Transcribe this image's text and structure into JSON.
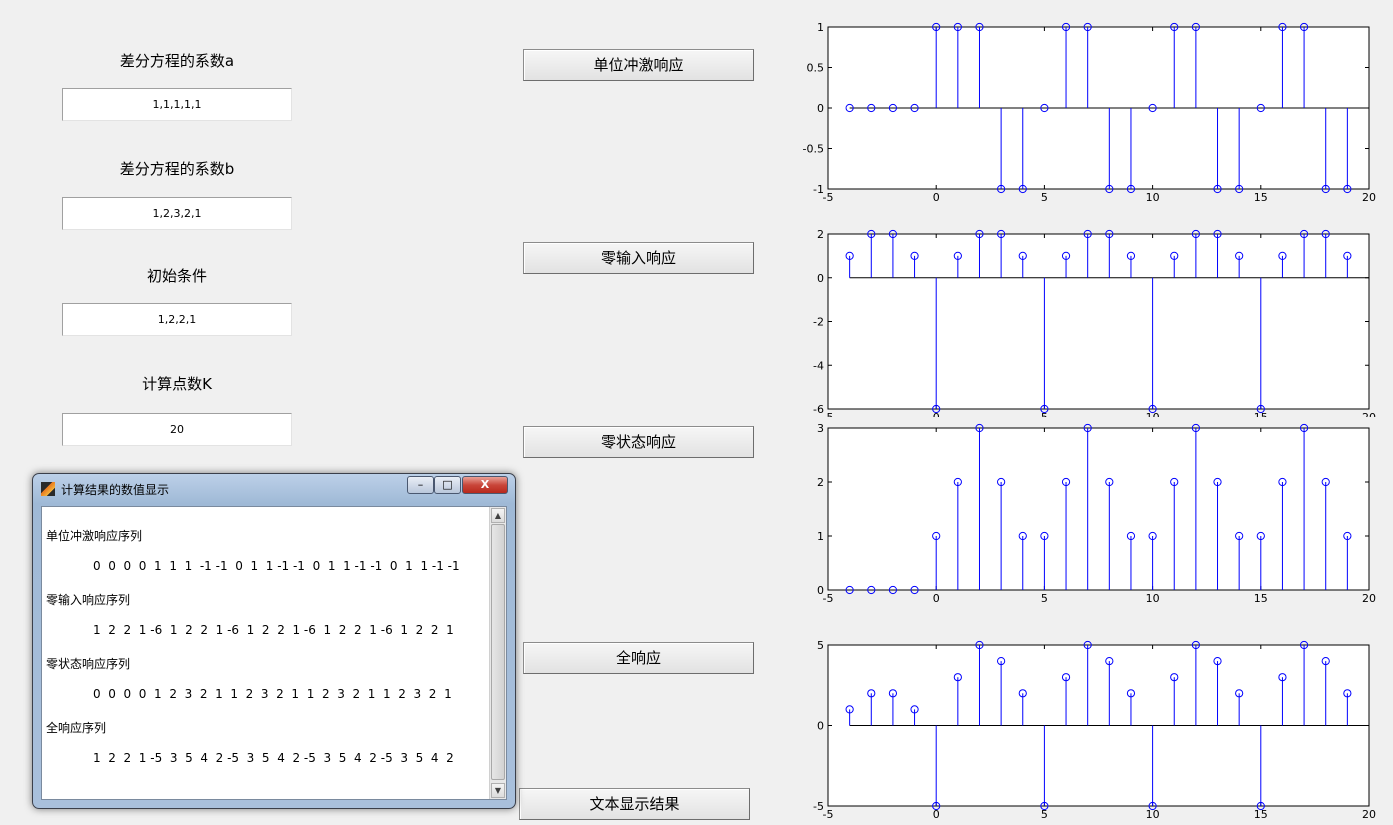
{
  "form": {
    "label_a": "差分方程的系数a",
    "value_a": "1,1,1,1,1",
    "label_b": "差分方程的系数b",
    "value_b": "1,2,3,2,1",
    "label_init": "初始条件",
    "value_init": "1,2,2,1",
    "label_k": "计算点数K",
    "value_k": "20"
  },
  "buttons": {
    "impulse": "单位冲激响应",
    "zero_input": "零输入响应",
    "zero_state": "零状态响应",
    "full": "全响应",
    "text_display": "文本显示结果"
  },
  "dialog": {
    "title": "计算结果的数值显示",
    "minimize": "–",
    "maximize": "□",
    "close": "X",
    "impulse_label": "单位冲激响应序列",
    "impulse_seq": "0  0  0  0  1  1  1  -1 -1  0  1  1 -1 -1  0  1  1 -1 -1  0  1  1 -1 -1",
    "zero_input_label": "零输入响应序列",
    "zero_input_seq": "1  2  2  1 -6  1  2  2  1 -6  1  2  2  1 -6  1  2  2  1 -6  1  2  2  1",
    "zero_state_label": "零状态响应序列",
    "zero_state_seq": "0  0  0  0  1  2  3  2  1  1  2  3  2  1  1  2  3  2  1  1  2  3  2  1",
    "full_label": "全响应序列",
    "full_seq": "1  2  2  1 -5  3  5  4  2 -5  3  5  4  2 -5  3  5  4  2 -5  3  5  4  2",
    "scroll_up": "▲",
    "scroll_down": "▼"
  },
  "chart_data": [
    {
      "type": "stem",
      "x": [
        -4,
        -3,
        -2,
        -1,
        0,
        1,
        2,
        3,
        4,
        5,
        6,
        7,
        8,
        9,
        10,
        11,
        12,
        13,
        14,
        15,
        16,
        17,
        18,
        19
      ],
      "values": [
        0,
        0,
        0,
        0,
        1,
        1,
        1,
        -1,
        -1,
        0,
        1,
        1,
        -1,
        -1,
        0,
        1,
        1,
        -1,
        -1,
        0,
        1,
        1,
        -1,
        -1
      ],
      "xlim": [
        -5,
        20
      ],
      "ylim": [
        -1,
        1
      ],
      "xticks": [
        -5,
        0,
        5,
        10,
        15,
        20
      ],
      "yticks": [
        -1,
        -0.5,
        0,
        0.5,
        1
      ],
      "color": "#0000ff"
    },
    {
      "type": "stem",
      "x": [
        -4,
        -3,
        -2,
        -1,
        0,
        1,
        2,
        3,
        4,
        5,
        6,
        7,
        8,
        9,
        10,
        11,
        12,
        13,
        14,
        15,
        16,
        17,
        18,
        19
      ],
      "values": [
        1,
        2,
        2,
        1,
        -6,
        1,
        2,
        2,
        1,
        -6,
        1,
        2,
        2,
        1,
        -6,
        1,
        2,
        2,
        1,
        -6,
        1,
        2,
        2,
        1
      ],
      "xlim": [
        -5,
        20
      ],
      "ylim": [
        -6,
        2
      ],
      "xticks": [
        -5,
        0,
        5,
        10,
        15,
        20
      ],
      "yticks": [
        -6,
        -4,
        -2,
        0,
        2
      ],
      "color": "#0000ff"
    },
    {
      "type": "stem",
      "x": [
        -4,
        -3,
        -2,
        -1,
        0,
        1,
        2,
        3,
        4,
        5,
        6,
        7,
        8,
        9,
        10,
        11,
        12,
        13,
        14,
        15,
        16,
        17,
        18,
        19
      ],
      "values": [
        0,
        0,
        0,
        0,
        1,
        2,
        3,
        2,
        1,
        1,
        2,
        3,
        2,
        1,
        1,
        2,
        3,
        2,
        1,
        1,
        2,
        3,
        2,
        1
      ],
      "xlim": [
        -5,
        20
      ],
      "ylim": [
        0,
        3
      ],
      "xticks": [
        -5,
        0,
        5,
        10,
        15,
        20
      ],
      "yticks": [
        0,
        1,
        2,
        3
      ],
      "color": "#0000ff"
    },
    {
      "type": "stem",
      "x": [
        -4,
        -3,
        -2,
        -1,
        0,
        1,
        2,
        3,
        4,
        5,
        6,
        7,
        8,
        9,
        10,
        11,
        12,
        13,
        14,
        15,
        16,
        17,
        18,
        19
      ],
      "values": [
        1,
        2,
        2,
        1,
        -5,
        3,
        5,
        4,
        2,
        -5,
        3,
        5,
        4,
        2,
        -5,
        3,
        5,
        4,
        2,
        -5,
        3,
        5,
        4,
        2
      ],
      "xlim": [
        -5,
        20
      ],
      "ylim": [
        -5,
        5
      ],
      "xticks": [
        -5,
        0,
        5,
        10,
        15,
        20
      ],
      "yticks": [
        -5,
        0,
        5
      ],
      "color": "#0000ff"
    }
  ]
}
